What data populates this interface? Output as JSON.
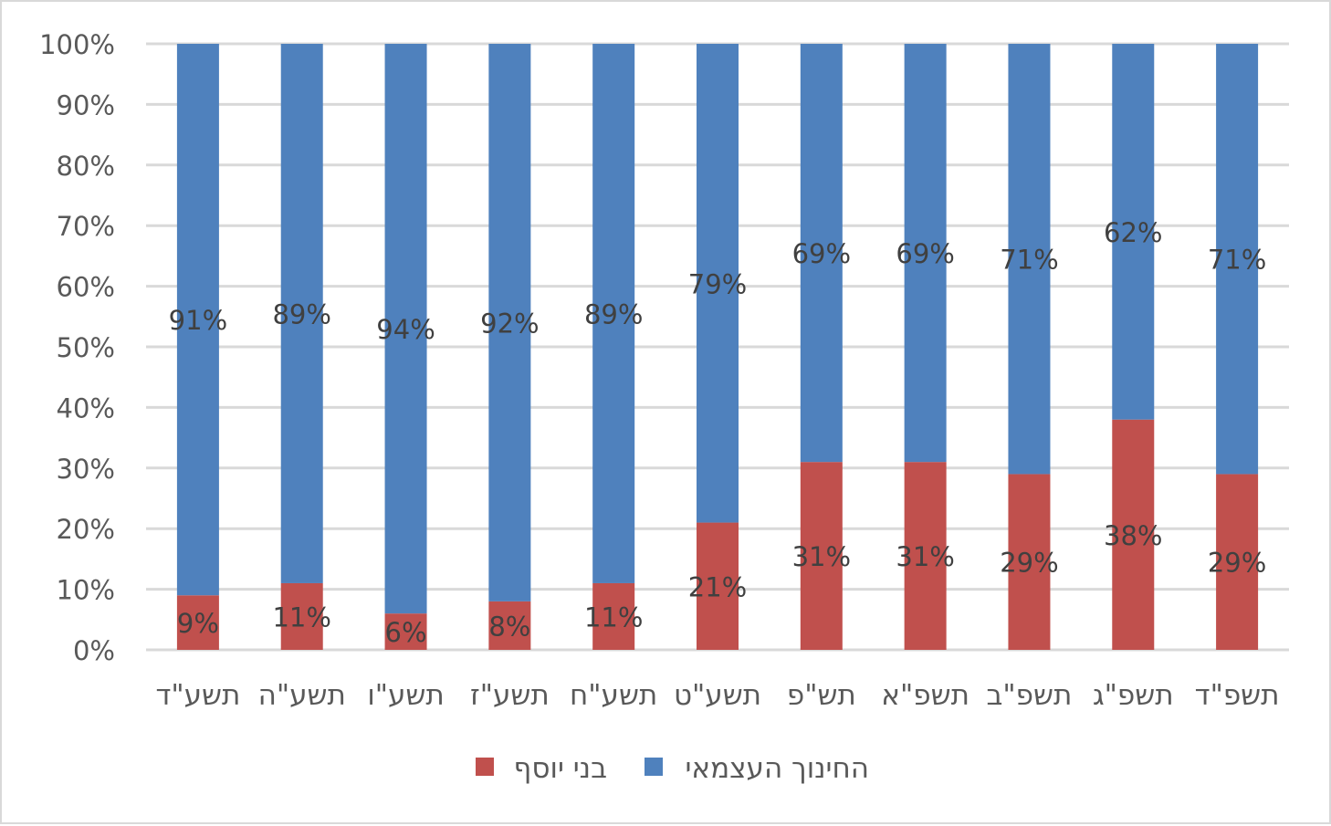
{
  "chart_data": {
    "type": "bar",
    "stacked": true,
    "percent_stacked": true,
    "categories": [
      "תשע\"ד",
      "תשע\"ה",
      "תשע\"ו",
      "תשע\"ז",
      "תשע\"ח",
      "תשע\"ט",
      "תש\"פ",
      "תשפ\"א",
      "תשפ\"ב",
      "תשפ\"ג",
      "תשפ\"ד"
    ],
    "series": [
      {
        "name": "בני יוסף",
        "color": "#c0504d",
        "values": [
          9,
          11,
          6,
          8,
          11,
          21,
          31,
          31,
          29,
          38,
          29
        ]
      },
      {
        "name": "החינוך העצמאי",
        "color": "#4f81bd",
        "values": [
          91,
          89,
          94,
          92,
          89,
          79,
          69,
          69,
          71,
          62,
          71
        ]
      }
    ],
    "ylim": [
      0,
      100
    ],
    "yticks": [
      "0%",
      "10%",
      "20%",
      "30%",
      "40%",
      "50%",
      "60%",
      "70%",
      "80%",
      "90%",
      "100%"
    ],
    "grid": true,
    "legend_position": "bottom",
    "legend_order": [
      "בני יוסף",
      "החינוך העצמאי"
    ],
    "data_labels": true,
    "title": "",
    "xlabel": "",
    "ylabel": ""
  }
}
